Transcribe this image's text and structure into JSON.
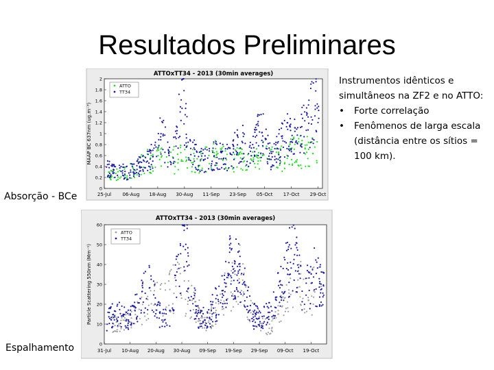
{
  "slide": {
    "title": "Resultados Preliminares",
    "intro": "Instrumentos idênticos e simultâneos na ZF2 e no ATTO:",
    "bullets": [
      "Forte correlação",
      "Fenômenos de larga escala (distância entre os sítios = 100 km)."
    ],
    "label_absorption": "Absorção - BCe",
    "label_scattering": "Espalhamento"
  },
  "chart_data": [
    {
      "type": "scatter",
      "title": "ATTOxTT34 - 2013 (30min averages)",
      "ylabel": "MAAP BC 637nm (ug.m⁻³)",
      "xlabel": "",
      "ylim": [
        0,
        2.0
      ],
      "yticks": [
        0,
        0.2,
        0.4,
        0.6,
        0.8,
        1,
        1.2,
        1.4,
        1.6,
        1.8,
        2
      ],
      "x_range_days": [
        0,
        98
      ],
      "xticks": [
        {
          "label": "25-Jul",
          "day": 0
        },
        {
          "label": "06-Aug",
          "day": 12
        },
        {
          "label": "18-Aug",
          "day": 24
        },
        {
          "label": "30-Aug",
          "day": 36
        },
        {
          "label": "11-Sep",
          "day": 48
        },
        {
          "label": "23-Sep",
          "day": 60
        },
        {
          "label": "05-Oct",
          "day": 72
        },
        {
          "label": "17-Oct",
          "day": 84
        },
        {
          "label": "29-Oct",
          "day": 96
        }
      ],
      "legend_position": "top-left",
      "grid": false,
      "series": [
        {
          "name": "ATTO",
          "color": "#22dd22",
          "days": [
            2,
            10,
            20,
            28,
            33,
            36,
            42,
            48,
            58,
            64,
            68,
            72,
            80,
            86,
            92,
            96
          ],
          "values": [
            0.22,
            0.28,
            0.5,
            0.55,
            0.5,
            0.62,
            0.45,
            0.65,
            0.5,
            0.55,
            0.48,
            0.62,
            0.55,
            0.7,
            0.68,
            0.85
          ]
        },
        {
          "name": "TT34",
          "color": "#1a1aa6",
          "days": [
            1,
            6,
            12,
            18,
            22,
            26,
            30,
            33,
            35,
            38,
            44,
            50,
            54,
            58,
            62,
            66,
            70,
            74,
            78,
            82,
            87,
            91,
            95,
            97
          ],
          "values": [
            0.35,
            0.3,
            0.3,
            0.45,
            0.65,
            0.95,
            0.45,
            1.0,
            1.7,
            0.7,
            0.5,
            0.6,
            0.55,
            0.7,
            0.8,
            0.6,
            1.1,
            0.6,
            0.7,
            1.0,
            0.9,
            1.2,
            1.5,
            1.0
          ]
        }
      ]
    },
    {
      "type": "scatter",
      "title": "ATTOxTT34 - 2013 (30min averages)",
      "ylabel": "Particle Scattering 550nm (Mm⁻¹)",
      "xlabel": "",
      "ylim": [
        0,
        60
      ],
      "yticks": [
        0,
        10,
        20,
        30,
        40,
        50,
        60
      ],
      "x_range_days": [
        0,
        86
      ],
      "xticks": [
        {
          "label": "31-Jul",
          "day": 0
        },
        {
          "label": "10-Aug",
          "day": 10
        },
        {
          "label": "20-Aug",
          "day": 20
        },
        {
          "label": "30-Aug",
          "day": 30
        },
        {
          "label": "09-Sep",
          "day": 40
        },
        {
          "label": "19-Sep",
          "day": 50
        },
        {
          "label": "29-Sep",
          "day": 60
        },
        {
          "label": "09-Oct",
          "day": 70
        },
        {
          "label": "19-Oct",
          "day": 80
        }
      ],
      "legend_position": "top-left",
      "grid": false,
      "series": [
        {
          "name": "ATTO",
          "color": "#a0a0a0",
          "days": [
            3,
            10,
            18,
            24,
            28,
            34,
            40,
            46,
            52,
            58,
            64,
            70,
            76,
            80,
            84
          ],
          "values": [
            10,
            12,
            20,
            25,
            30,
            20,
            10,
            24,
            36,
            14,
            8,
            20,
            30,
            25,
            35
          ]
        },
        {
          "name": "TT34",
          "color": "#1a1aa6",
          "days": [
            1,
            5,
            9,
            13,
            17,
            21,
            25,
            29,
            31,
            33,
            37,
            41,
            45,
            49,
            53,
            57,
            61,
            65,
            69,
            73,
            77,
            81,
            85
          ],
          "values": [
            12,
            15,
            13,
            20,
            30,
            15,
            12,
            40,
            55,
            30,
            12,
            15,
            25,
            40,
            35,
            15,
            12,
            20,
            30,
            45,
            25,
            35,
            25
          ]
        }
      ]
    }
  ]
}
